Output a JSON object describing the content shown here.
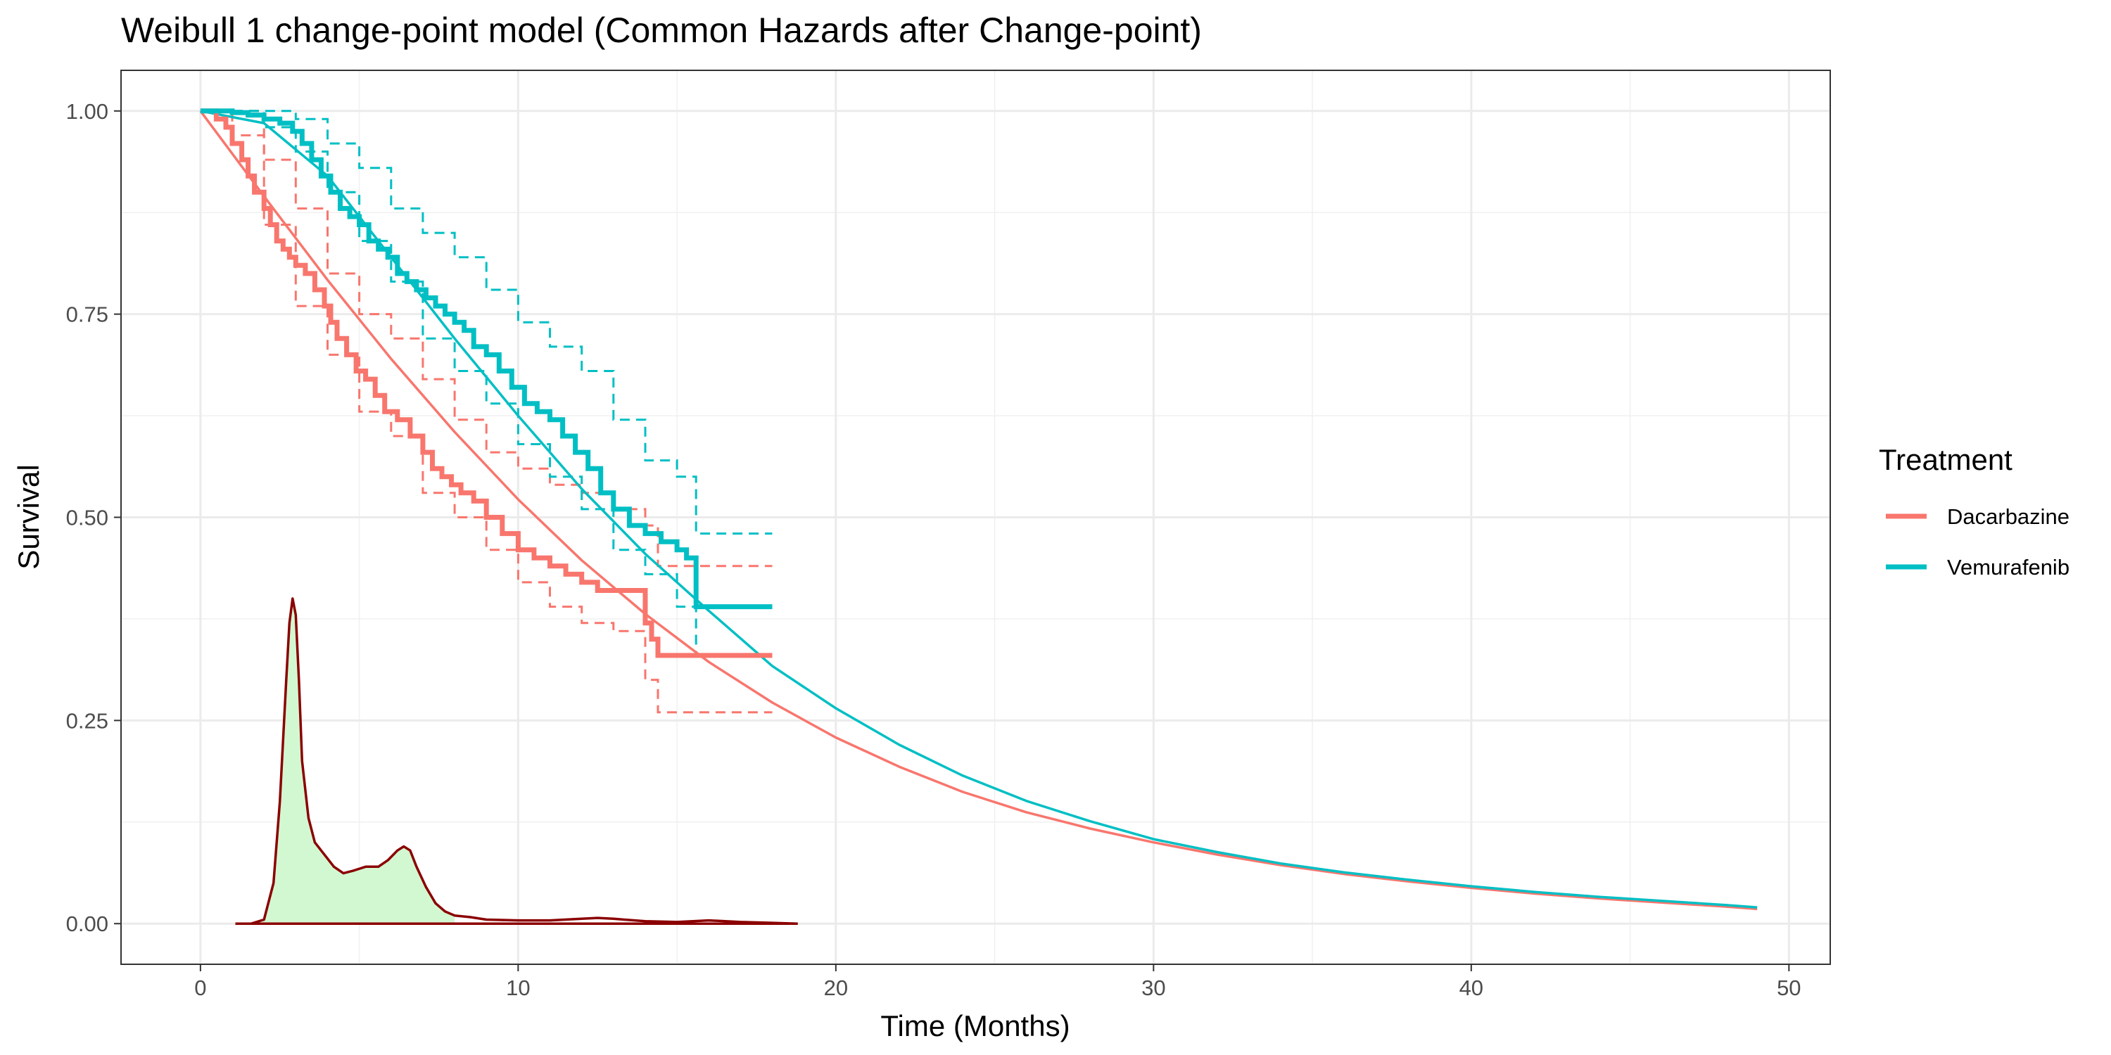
{
  "chart_data": {
    "type": "line",
    "title": "Weibull 1 change-point model (Common Hazards after Change-point)",
    "xlabel": "Time (Months)",
    "ylabel": "Survival",
    "xlim": [
      -2.5,
      51.3
    ],
    "ylim": [
      -0.05,
      1.05
    ],
    "x_ticks": [
      0,
      10,
      20,
      30,
      40,
      50
    ],
    "x_tick_labels": [
      "0",
      "10",
      "20",
      "30",
      "40",
      "50"
    ],
    "y_ticks": [
      0,
      0.25,
      0.5,
      0.75,
      1
    ],
    "y_tick_labels": [
      "0.00",
      "0.25",
      "0.50",
      "0.75",
      "1.00"
    ],
    "grid": true,
    "legend": {
      "title": "Treatment",
      "position": "right",
      "entries": [
        {
          "label": "Dacarbazine",
          "color": "#F8766D"
        },
        {
          "label": "Vemurafenib",
          "color": "#00BFC4"
        }
      ]
    },
    "series": [
      {
        "name": "Dacarbazine",
        "color": "#F8766D",
        "fitted": {
          "x": [
            0,
            2,
            4,
            6,
            8,
            10,
            12,
            14,
            16,
            18,
            20,
            22,
            24,
            26,
            28,
            30,
            32,
            34,
            36,
            38,
            40,
            42,
            44,
            46,
            48,
            49
          ],
          "y": [
            1.0,
            0.895,
            0.792,
            0.695,
            0.605,
            0.522,
            0.447,
            0.381,
            0.322,
            0.272,
            0.229,
            0.193,
            0.162,
            0.137,
            0.117,
            0.1,
            0.085,
            0.072,
            0.061,
            0.052,
            0.044,
            0.037,
            0.031,
            0.026,
            0.021,
            0.018
          ]
        },
        "km": {
          "x": [
            0,
            0.5,
            0.8,
            1.0,
            1.3,
            1.5,
            1.7,
            2.0,
            2.2,
            2.4,
            2.6,
            2.8,
            3.0,
            3.3,
            3.6,
            3.9,
            4.1,
            4.3,
            4.6,
            4.9,
            5.2,
            5.5,
            5.8,
            6.2,
            6.6,
            7.0,
            7.3,
            7.6,
            7.9,
            8.2,
            8.6,
            9.0,
            9.5,
            10.0,
            10.5,
            11.0,
            11.5,
            12.0,
            12.5,
            13.0,
            14.0,
            14.2,
            14.4,
            18.0
          ],
          "y": [
            1.0,
            0.99,
            0.98,
            0.96,
            0.94,
            0.92,
            0.9,
            0.88,
            0.86,
            0.84,
            0.83,
            0.82,
            0.81,
            0.8,
            0.78,
            0.76,
            0.74,
            0.72,
            0.7,
            0.68,
            0.67,
            0.65,
            0.63,
            0.62,
            0.6,
            0.58,
            0.56,
            0.55,
            0.54,
            0.53,
            0.52,
            0.5,
            0.48,
            0.46,
            0.45,
            0.44,
            0.43,
            0.42,
            0.41,
            0.41,
            0.37,
            0.35,
            0.33,
            0.33
          ]
        },
        "ci_upper": {
          "x": [
            0,
            1.0,
            2.0,
            3.0,
            4.0,
            5.0,
            6.0,
            7.0,
            8.0,
            9.0,
            10.0,
            11.0,
            12.0,
            13.0,
            14.0,
            14.4,
            18.0
          ],
          "y": [
            1.0,
            1.0,
            0.94,
            0.88,
            0.8,
            0.75,
            0.72,
            0.67,
            0.62,
            0.58,
            0.56,
            0.54,
            0.53,
            0.51,
            0.49,
            0.44,
            0.44
          ]
        },
        "ci_lower": {
          "x": [
            0,
            1.0,
            2.0,
            3.0,
            4.0,
            5.0,
            6.0,
            7.0,
            8.0,
            9.0,
            10.0,
            11.0,
            12.0,
            13.0,
            14.0,
            14.4,
            18.0
          ],
          "y": [
            1.0,
            0.97,
            0.86,
            0.76,
            0.7,
            0.63,
            0.6,
            0.53,
            0.5,
            0.46,
            0.42,
            0.39,
            0.37,
            0.36,
            0.3,
            0.26,
            0.26
          ]
        }
      },
      {
        "name": "Vemurafenib",
        "color": "#00BFC4",
        "fitted": {
          "x": [
            0,
            2,
            4,
            6,
            8,
            10,
            12,
            14,
            16,
            18,
            20,
            22,
            24,
            26,
            28,
            30,
            32,
            34,
            36,
            38,
            40,
            42,
            44,
            46,
            48,
            49
          ],
          "y": [
            1.0,
            0.985,
            0.92,
            0.82,
            0.72,
            0.625,
            0.535,
            0.455,
            0.385,
            0.317,
            0.265,
            0.22,
            0.182,
            0.151,
            0.126,
            0.104,
            0.088,
            0.074,
            0.063,
            0.054,
            0.046,
            0.039,
            0.033,
            0.028,
            0.023,
            0.02
          ]
        },
        "km": {
          "x": [
            0,
            1.0,
            1.5,
            2.0,
            2.5,
            2.9,
            3.2,
            3.5,
            3.8,
            4.1,
            4.4,
            4.7,
            5.0,
            5.3,
            5.6,
            5.9,
            6.2,
            6.5,
            6.8,
            7.1,
            7.4,
            7.7,
            8.0,
            8.3,
            8.6,
            9.0,
            9.4,
            9.8,
            10.2,
            10.6,
            11.0,
            11.4,
            11.8,
            12.2,
            12.6,
            13.0,
            13.5,
            14.0,
            14.5,
            15.0,
            15.3,
            15.6,
            18.0
          ],
          "y": [
            1.0,
            0.998,
            0.995,
            0.99,
            0.985,
            0.975,
            0.96,
            0.94,
            0.92,
            0.9,
            0.88,
            0.87,
            0.86,
            0.84,
            0.83,
            0.82,
            0.8,
            0.79,
            0.78,
            0.77,
            0.76,
            0.75,
            0.74,
            0.73,
            0.71,
            0.7,
            0.68,
            0.66,
            0.64,
            0.63,
            0.62,
            0.6,
            0.58,
            0.56,
            0.53,
            0.51,
            0.49,
            0.48,
            0.47,
            0.46,
            0.45,
            0.39,
            0.39
          ]
        },
        "ci_upper": {
          "x": [
            0,
            2.0,
            3.0,
            4.0,
            5.0,
            6.0,
            7.0,
            8.0,
            9.0,
            10.0,
            11.0,
            12.0,
            13.0,
            14.0,
            15.0,
            15.6,
            18.0
          ],
          "y": [
            1.0,
            1.0,
            0.99,
            0.96,
            0.93,
            0.88,
            0.85,
            0.82,
            0.78,
            0.74,
            0.71,
            0.68,
            0.62,
            0.57,
            0.55,
            0.48,
            0.48
          ]
        },
        "ci_lower": {
          "x": [
            0,
            2.0,
            3.0,
            4.0,
            5.0,
            6.0,
            7.0,
            8.0,
            9.0,
            10.0,
            11.0,
            12.0,
            13.0,
            14.0,
            15.0,
            15.6,
            18.0
          ],
          "y": [
            1.0,
            0.98,
            0.95,
            0.9,
            0.84,
            0.79,
            0.72,
            0.68,
            0.64,
            0.59,
            0.55,
            0.51,
            0.46,
            0.43,
            0.39,
            0.33,
            0.33
          ]
        }
      }
    ],
    "density": {
      "name": "change-point posterior density",
      "line_color": "#8B0000",
      "fill_color": "#D2F8D2",
      "fill_until_x": 8.0,
      "x": [
        1.1,
        1.6,
        2.0,
        2.3,
        2.5,
        2.7,
        2.8,
        2.9,
        3.0,
        3.1,
        3.2,
        3.4,
        3.6,
        3.8,
        4.0,
        4.2,
        4.5,
        4.8,
        5.2,
        5.6,
        5.9,
        6.2,
        6.4,
        6.6,
        6.8,
        7.1,
        7.4,
        7.7,
        8.0,
        8.5,
        9.0,
        10.0,
        11.0,
        12.0,
        12.5,
        13.0,
        14.0,
        15.0,
        15.5,
        16.0,
        17.0,
        18.0,
        18.8
      ],
      "y": [
        0.0,
        0.0,
        0.005,
        0.05,
        0.15,
        0.3,
        0.37,
        0.4,
        0.38,
        0.3,
        0.2,
        0.13,
        0.1,
        0.09,
        0.08,
        0.07,
        0.062,
        0.065,
        0.07,
        0.07,
        0.078,
        0.09,
        0.095,
        0.09,
        0.07,
        0.045,
        0.025,
        0.015,
        0.01,
        0.008,
        0.005,
        0.004,
        0.004,
        0.006,
        0.007,
        0.006,
        0.003,
        0.002,
        0.003,
        0.004,
        0.002,
        0.001,
        0.0
      ]
    }
  }
}
